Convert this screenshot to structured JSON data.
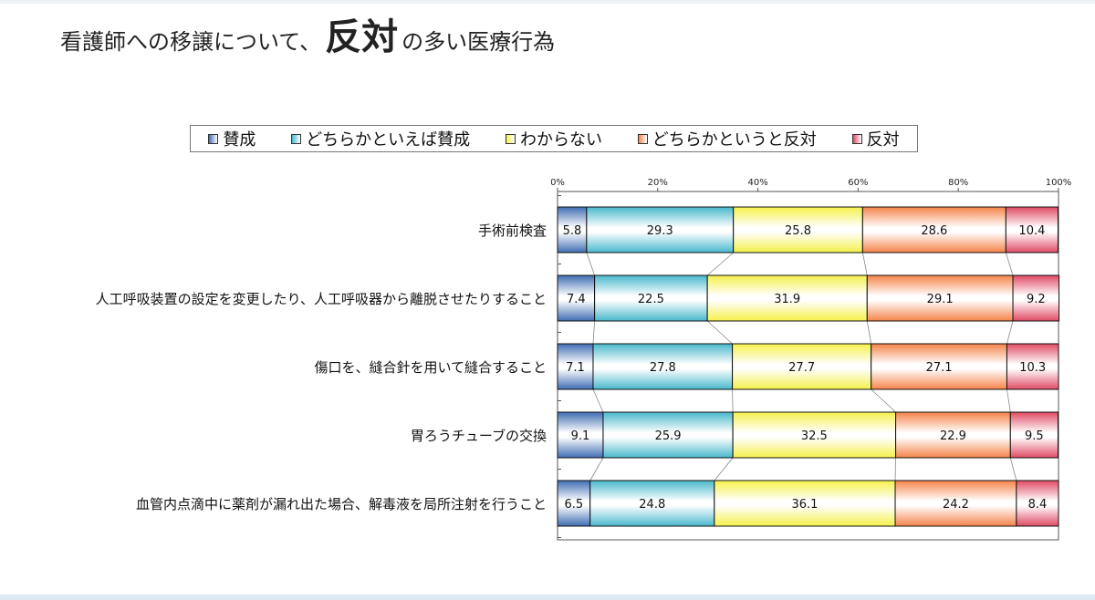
{
  "slide": {
    "title_pre": "看護師への移譲について、",
    "title_emph": "反対",
    "title_post": "の多い医療行為"
  },
  "colors": {
    "賛成": "#3f6db3",
    "どちらかといえば賛成": "#48b8cc",
    "わからない": "#f5f04a",
    "どちらかというと反対": "#f5834a",
    "反対": "#e04a63"
  },
  "chart_data": {
    "type": "bar",
    "orientation": "horizontal",
    "stacked": "percent",
    "categories": [
      "手術前検査",
      "人工呼吸装置の設定を変更したり、人工呼吸器から離脱させたりすること",
      "傷口を、縫合針を用いて縫合すること",
      "胃ろうチューブの交換",
      "血管内点滴中に薬剤が漏れ出た場合、解毒液を局所注射を行うこと"
    ],
    "series": [
      {
        "name": "賛成",
        "values": [
          5.8,
          7.4,
          7.1,
          9.1,
          6.5
        ]
      },
      {
        "name": "どちらかといえば賛成",
        "values": [
          29.3,
          22.5,
          27.8,
          25.9,
          24.8
        ]
      },
      {
        "name": "わからない",
        "values": [
          25.8,
          31.9,
          27.7,
          32.5,
          36.1
        ]
      },
      {
        "name": "どちらかというと反対",
        "values": [
          28.6,
          29.1,
          27.1,
          22.9,
          24.2
        ]
      },
      {
        "name": "反対",
        "values": [
          10.4,
          9.2,
          10.3,
          9.5,
          8.4
        ]
      }
    ],
    "x_ticks": [
      "0%",
      "20%",
      "40%",
      "60%",
      "80%",
      "100%"
    ],
    "xlim": [
      0,
      100
    ],
    "legend_position": "top",
    "grid": false,
    "data_labels": true
  }
}
